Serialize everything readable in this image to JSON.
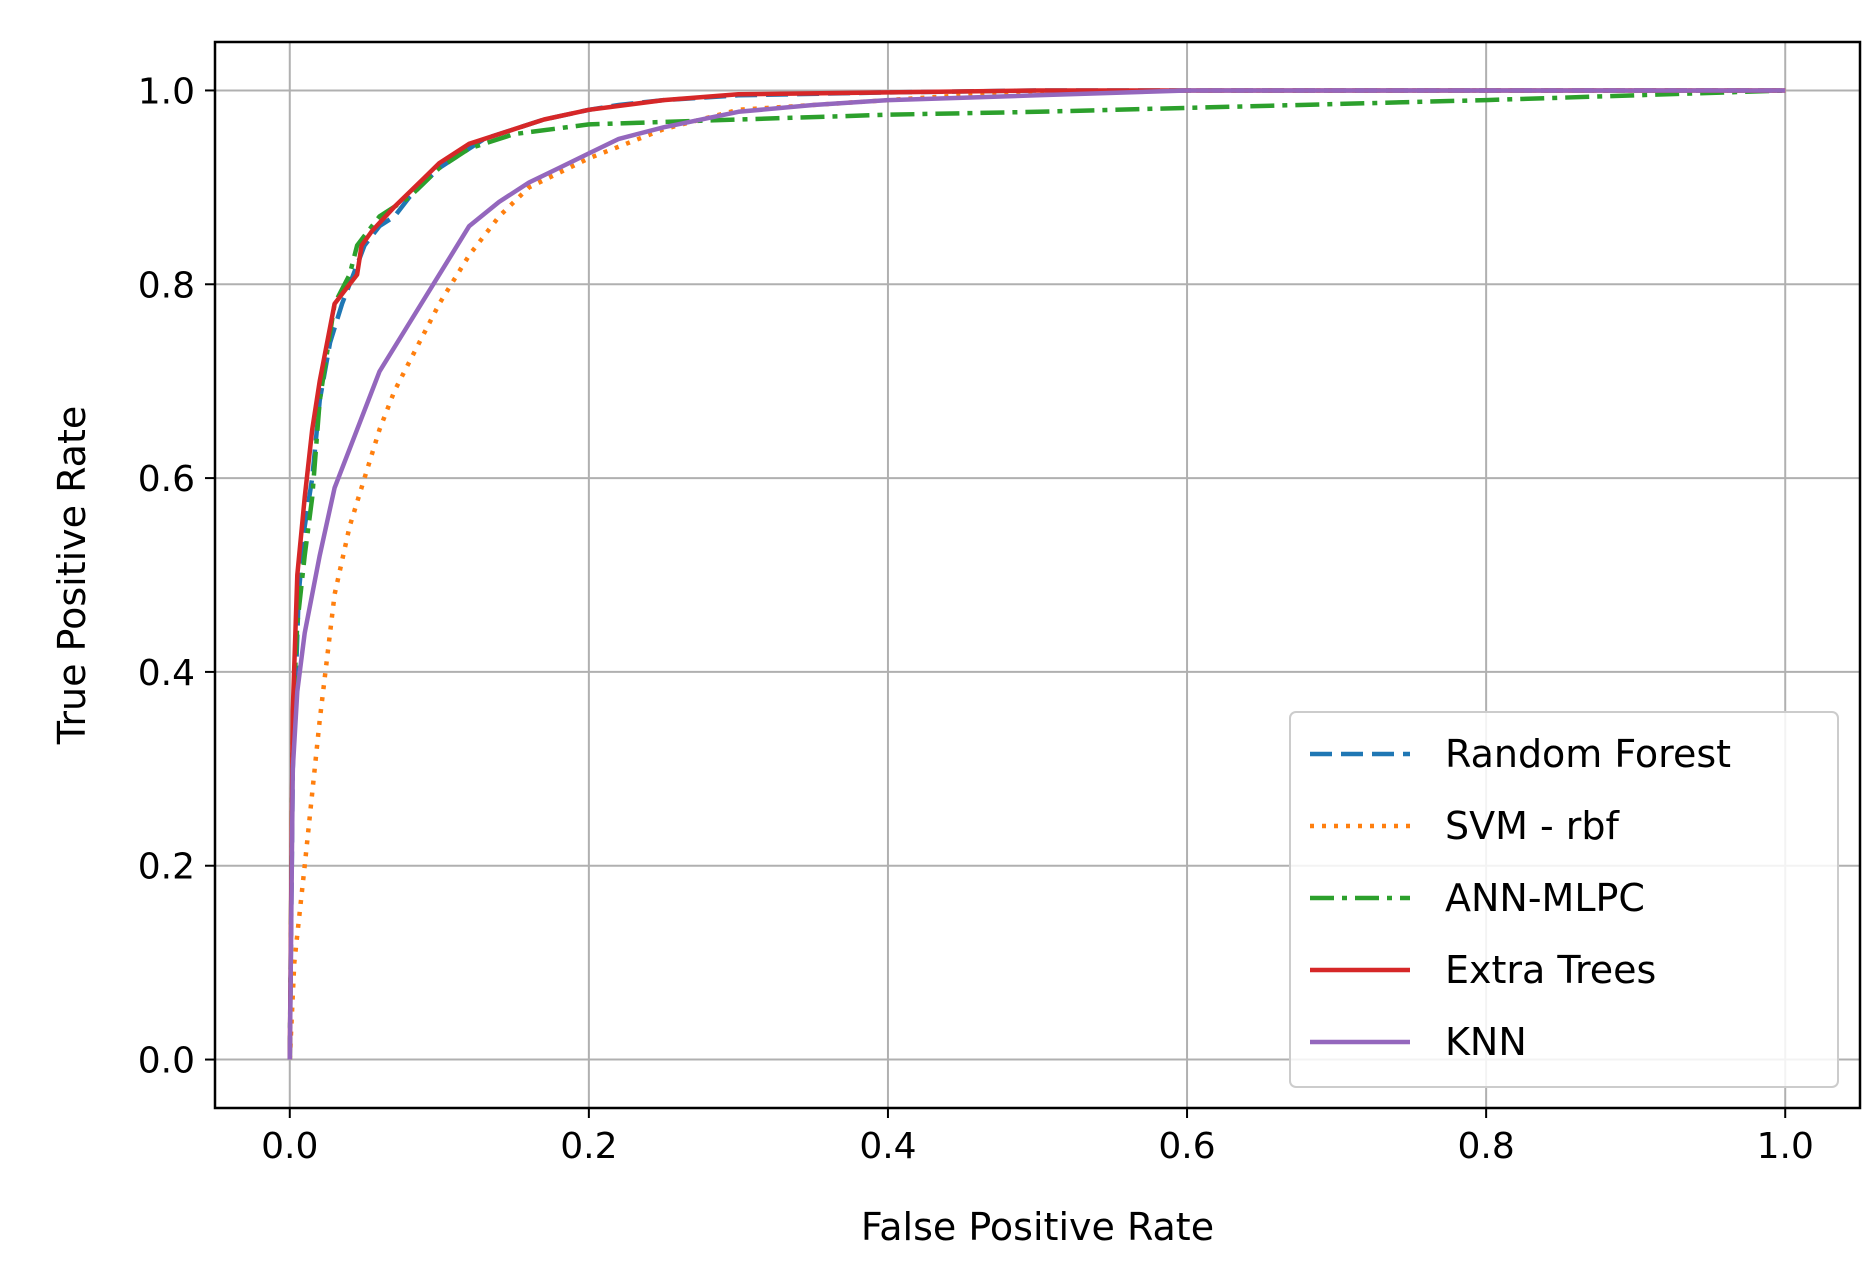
{
  "chart_data": {
    "type": "line",
    "title": "",
    "xlabel": "False Positive Rate",
    "ylabel": "True Positive Rate",
    "xlim": [
      -0.05,
      1.05
    ],
    "ylim": [
      -0.05,
      1.05
    ],
    "xticks": [
      0.0,
      0.2,
      0.4,
      0.6,
      0.8,
      1.0
    ],
    "xtick_labels": [
      "0.0",
      "0.2",
      "0.4",
      "0.6",
      "0.8",
      "1.0"
    ],
    "yticks": [
      0.0,
      0.2,
      0.4,
      0.6,
      0.8,
      1.0
    ],
    "ytick_labels": [
      "0.0",
      "0.2",
      "0.4",
      "0.6",
      "0.8",
      "1.0"
    ],
    "grid": true,
    "legend_position": "lower-right",
    "series": [
      {
        "name": "Random Forest",
        "color": "#1f77b4",
        "style": "dashed",
        "x": [
          0,
          0.002,
          0.006,
          0.01,
          0.015,
          0.02,
          0.027,
          0.035,
          0.045,
          0.05,
          0.06,
          0.07,
          0.08,
          0.1,
          0.12,
          0.13,
          0.15,
          0.17,
          0.2,
          0.22,
          0.25,
          0.3,
          0.4,
          0.5,
          0.6,
          0.7,
          0.8,
          0.9,
          1.0
        ],
        "y": [
          0,
          0.3,
          0.48,
          0.55,
          0.6,
          0.68,
          0.74,
          0.78,
          0.82,
          0.84,
          0.86,
          0.87,
          0.89,
          0.92,
          0.94,
          0.95,
          0.96,
          0.97,
          0.98,
          0.985,
          0.99,
          0.995,
          0.998,
          1.0,
          1.0,
          1.0,
          1.0,
          1.0,
          1.0
        ]
      },
      {
        "name": "SVM - rbf",
        "color": "#ff7f0e",
        "style": "dotted",
        "x": [
          0,
          0.003,
          0.01,
          0.02,
          0.03,
          0.04,
          0.05,
          0.06,
          0.07,
          0.08,
          0.1,
          0.12,
          0.14,
          0.16,
          0.2,
          0.25,
          0.3,
          0.35,
          0.4,
          0.45,
          0.5,
          0.6,
          0.7,
          0.8,
          0.9,
          1.0
        ],
        "y": [
          0,
          0.1,
          0.2,
          0.35,
          0.48,
          0.55,
          0.6,
          0.65,
          0.69,
          0.72,
          0.78,
          0.83,
          0.87,
          0.9,
          0.93,
          0.96,
          0.98,
          0.985,
          0.99,
          0.995,
          0.998,
          1.0,
          1.0,
          1.0,
          1.0,
          1.0
        ]
      },
      {
        "name": "ANN-MLPC",
        "color": "#2ca02c",
        "style": "dashdot",
        "x": [
          0,
          0.002,
          0.005,
          0.01,
          0.015,
          0.02,
          0.03,
          0.04,
          0.045,
          0.05,
          0.06,
          0.08,
          0.1,
          0.12,
          0.15,
          0.2,
          0.3,
          0.4,
          0.5,
          0.6,
          0.7,
          0.8,
          0.9,
          1.0
        ],
        "y": [
          0,
          0.35,
          0.45,
          0.52,
          0.58,
          0.68,
          0.78,
          0.81,
          0.84,
          0.85,
          0.87,
          0.89,
          0.92,
          0.94,
          0.955,
          0.965,
          0.97,
          0.975,
          0.978,
          0.982,
          0.986,
          0.99,
          0.995,
          1.0
        ]
      },
      {
        "name": "Extra Trees",
        "color": "#d62728",
        "style": "solid",
        "x": [
          0,
          0.002,
          0.005,
          0.01,
          0.015,
          0.02,
          0.03,
          0.04,
          0.045,
          0.048,
          0.055,
          0.07,
          0.09,
          0.1,
          0.12,
          0.15,
          0.17,
          0.2,
          0.25,
          0.3,
          0.4,
          0.5,
          0.6,
          0.7,
          0.8,
          0.9,
          1.0
        ],
        "y": [
          0,
          0.36,
          0.5,
          0.58,
          0.65,
          0.7,
          0.78,
          0.8,
          0.81,
          0.84,
          0.855,
          0.88,
          0.91,
          0.925,
          0.945,
          0.96,
          0.97,
          0.98,
          0.99,
          0.996,
          0.998,
          1.0,
          1.0,
          1.0,
          1.0,
          1.0,
          1.0
        ]
      },
      {
        "name": "KNN",
        "color": "#9467bd",
        "style": "solid",
        "x": [
          0,
          0.002,
          0.005,
          0.01,
          0.02,
          0.03,
          0.045,
          0.06,
          0.08,
          0.1,
          0.12,
          0.14,
          0.16,
          0.18,
          0.2,
          0.22,
          0.25,
          0.3,
          0.35,
          0.4,
          0.5,
          0.6,
          0.7,
          0.8,
          0.9,
          1.0
        ],
        "y": [
          0,
          0.3,
          0.38,
          0.44,
          0.52,
          0.59,
          0.65,
          0.71,
          0.76,
          0.81,
          0.86,
          0.885,
          0.905,
          0.92,
          0.935,
          0.95,
          0.962,
          0.978,
          0.985,
          0.99,
          0.995,
          1.0,
          1.0,
          1.0,
          1.0,
          1.0
        ]
      }
    ]
  }
}
